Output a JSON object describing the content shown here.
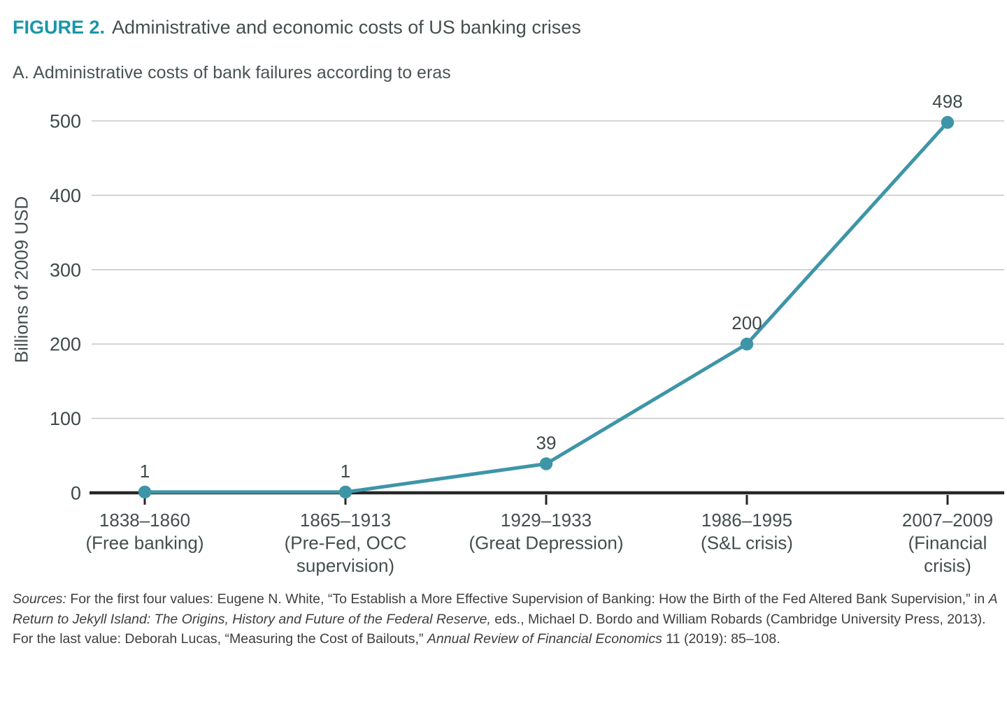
{
  "figure": {
    "label": "FIGURE 2.",
    "title": "Administrative and economic costs of US banking crises",
    "panel_title": "A. Administrative costs of bank failures according to eras"
  },
  "chart_data": {
    "type": "line",
    "title": "A. Administrative costs of bank failures according to eras",
    "xlabel": "",
    "ylabel": "Billions of 2009 USD",
    "ylim": [
      0,
      500
    ],
    "yticks": [
      0,
      100,
      200,
      300,
      400,
      500
    ],
    "grid": "horizontal",
    "legend_position": "none",
    "categories": [
      [
        "1838–1860",
        "(Free banking)"
      ],
      [
        "1865–1913",
        "(Pre-Fed, OCC",
        "supervision)"
      ],
      [
        "1929–1933",
        "(Great Depression)"
      ],
      [
        "1986–1995",
        "(S&L crisis)"
      ],
      [
        "2007–2009",
        "(Financial",
        "crisis)"
      ]
    ],
    "series": [
      {
        "name": "Administrative costs of bank failures",
        "values": [
          1,
          1,
          39,
          200,
          498
        ]
      }
    ],
    "point_labels": [
      "1",
      "1",
      "39",
      "200",
      "498"
    ],
    "colors": {
      "accent": "#1897AA",
      "line": "#3E95A8",
      "marker": "#3E95A8",
      "text": "#454E4F",
      "tick_text": "#3F4849",
      "gridline": "#C9C9C9",
      "axis": "#272727"
    }
  },
  "sources": {
    "segments": [
      {
        "text": "Sources:",
        "italic": true
      },
      {
        "text": " For the first four values: Eugene N. White, “To Establish a More Effective Supervision of Banking: How the Birth of the Fed Altered Bank Supervision,” in ",
        "italic": false
      },
      {
        "text": "A Return to Jekyll Island: The Origins, History and Future of the Federal Reserve,",
        "italic": true
      },
      {
        "text": " eds., Michael D. Bordo and William Robards (Cambridge University Press, 2013). For the last value: Deborah Lucas, “Measuring the Cost of Bailouts,” ",
        "italic": false
      },
      {
        "text": "Annual Review of Financial Economics",
        "italic": true
      },
      {
        "text": " 11 (2019): 85–108.",
        "italic": false
      }
    ]
  }
}
